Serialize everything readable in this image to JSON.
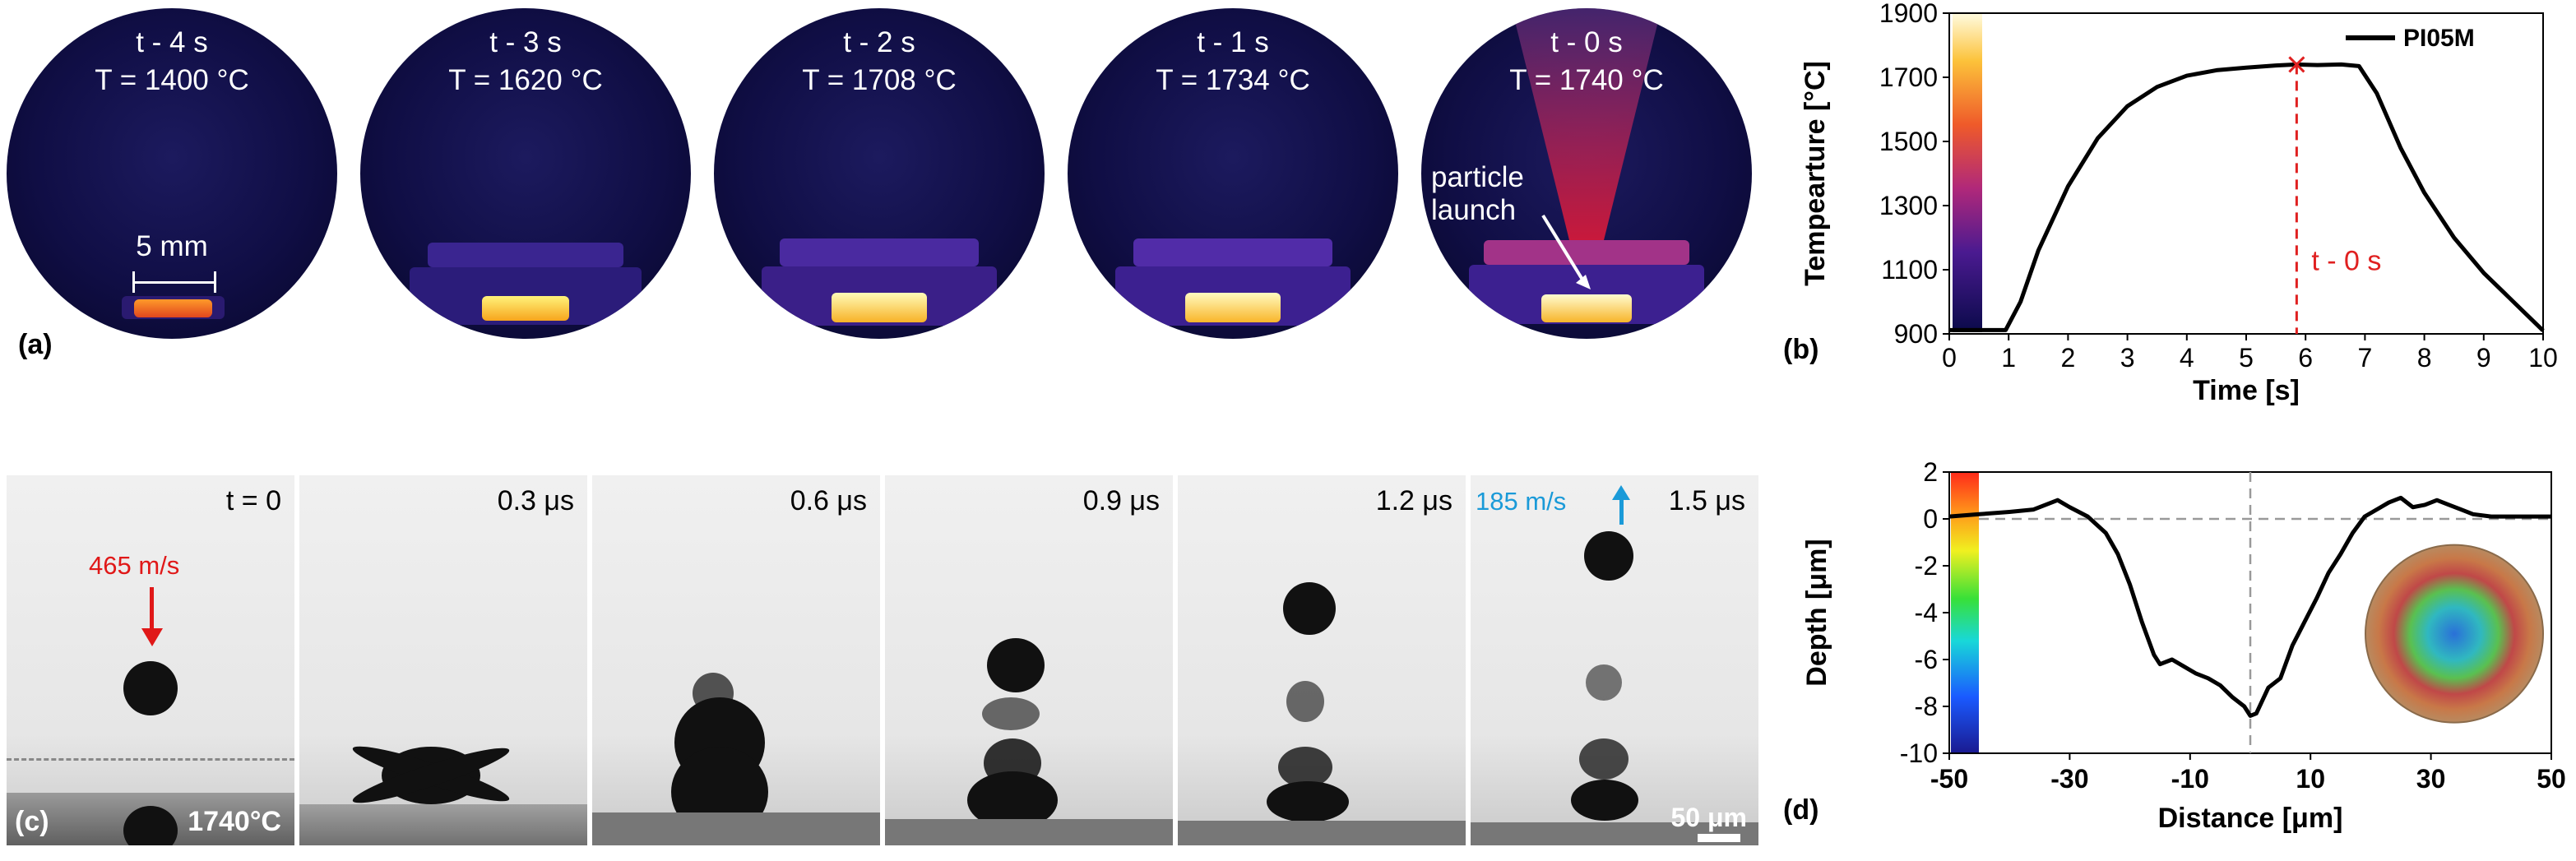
{
  "figure": {
    "panel_a": {
      "label": "(a)",
      "frames": [
        {
          "time": "t - 4 s",
          "temp": "T = 1400 °C"
        },
        {
          "time": "t - 3 s",
          "temp": "T = 1620 °C"
        },
        {
          "time": "t - 2 s",
          "temp": "T = 1708 °C"
        },
        {
          "time": "t - 1 s",
          "temp": "T = 1734 °C"
        },
        {
          "time": "t - 0 s",
          "temp": "T = 1740 °C"
        }
      ],
      "scale_label": "5 mm",
      "annotation_line1": "particle",
      "annotation_line2": "launch"
    },
    "panel_b": {
      "label": "(b)",
      "legend": "PI05M",
      "marker_label": "t - 0 s"
    },
    "panel_c": {
      "label": "(c)",
      "times": [
        "t = 0",
        "0.3 μs",
        "0.6 μs",
        "0.9 μs",
        "1.2 μs",
        "1.5 μs"
      ],
      "impact_velocity": "465 m/s",
      "rebound_velocity": "185 m/s",
      "temperature": "1740°C",
      "scale_bar": "50 μm"
    },
    "panel_d": {
      "label": "(d)"
    }
  },
  "chart_data": [
    {
      "type": "line",
      "title": "",
      "xlabel": "Time [s]",
      "ylabel": "Tempearture [°C]",
      "xlim": [
        0,
        10
      ],
      "ylim": [
        900,
        1900
      ],
      "xticks": [
        0,
        1,
        2,
        3,
        4,
        5,
        6,
        7,
        8,
        9,
        10
      ],
      "yticks": [
        900,
        1100,
        1300,
        1500,
        1700,
        1900
      ],
      "legend_position": "top-right",
      "series": [
        {
          "name": "PI05M",
          "color": "#000000",
          "x": [
            0,
            0.5,
            0.95,
            1.2,
            1.5,
            2.0,
            2.5,
            3.0,
            3.5,
            4.0,
            4.5,
            5.0,
            5.5,
            5.85,
            6.2,
            6.6,
            6.9,
            7.2,
            7.6,
            8.0,
            8.5,
            9.0,
            9.5,
            10.0
          ],
          "y": [
            912,
            912,
            912,
            1000,
            1160,
            1360,
            1510,
            1610,
            1670,
            1705,
            1722,
            1730,
            1737,
            1740,
            1738,
            1740,
            1735,
            1650,
            1480,
            1340,
            1200,
            1090,
            1000,
            910
          ]
        }
      ],
      "markers": [
        {
          "x": 5.85,
          "y": 1740,
          "symbol": "x",
          "color": "#e02020"
        }
      ],
      "vline": {
        "x": 5.85,
        "color": "#e02020",
        "style": "dashed"
      },
      "colorbar": true
    },
    {
      "type": "line",
      "title": "",
      "xlabel": "Distance [μm]",
      "ylabel": "Depth [μm]",
      "xlim": [
        -50,
        50
      ],
      "ylim": [
        -10,
        2
      ],
      "xticks": [
        -50,
        -30,
        -10,
        10,
        30,
        50
      ],
      "yticks": [
        2,
        0,
        -2,
        -4,
        -6,
        -8,
        -10
      ],
      "series": [
        {
          "name": "",
          "color": "#000000",
          "x": [
            -50,
            -45,
            -40,
            -36,
            -32,
            -30,
            -27,
            -24,
            -22,
            -20,
            -18,
            -16,
            -15,
            -13,
            -11,
            -9,
            -7,
            -5,
            -3,
            -1,
            0,
            1,
            3,
            5,
            7,
            9,
            11,
            13,
            15,
            17,
            19,
            21,
            23,
            25,
            27,
            29,
            31,
            33,
            35,
            37,
            40,
            45,
            50
          ],
          "y": [
            0.1,
            0.2,
            0.3,
            0.4,
            0.8,
            0.5,
            0.1,
            -0.6,
            -1.5,
            -2.8,
            -4.4,
            -5.8,
            -6.2,
            -6.0,
            -6.3,
            -6.6,
            -6.8,
            -7.1,
            -7.6,
            -8.0,
            -8.4,
            -8.3,
            -7.2,
            -6.8,
            -5.4,
            -4.4,
            -3.4,
            -2.3,
            -1.5,
            -0.6,
            0.1,
            0.4,
            0.7,
            0.9,
            0.5,
            0.6,
            0.8,
            0.6,
            0.4,
            0.2,
            0.1,
            0.1,
            0.1
          ]
        }
      ],
      "hline": {
        "y": 0,
        "style": "dashed",
        "color": "#999999"
      },
      "vline": {
        "x": 0,
        "style": "dashed",
        "color": "#999999"
      },
      "colorbar": true
    }
  ]
}
